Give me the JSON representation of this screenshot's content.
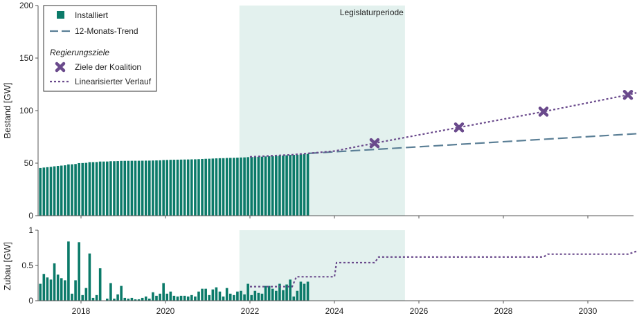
{
  "colors": {
    "bar": "#0b7a69",
    "target": "#6a4a8c",
    "trend": "#5b7f96",
    "shade": "#e3f1ee"
  },
  "chart_data": [
    {
      "type": "bar",
      "title": "",
      "ylabel": "Bestand [GW]",
      "ylim": [
        0,
        200
      ],
      "yticks": [
        0,
        50,
        100,
        150,
        200
      ],
      "xlim": [
        2017.03,
        2031.15
      ],
      "xticks": [
        2018,
        2020,
        2022,
        2024,
        2026,
        2028,
        2030
      ],
      "shade": {
        "label": "Legislaturperiode",
        "from": 2021.75,
        "to": 2025.67
      },
      "bestand_start": 45.2,
      "legend": {
        "placement": "top-left",
        "installed": "Installiert",
        "trend": "12-Monats-Trend",
        "heading": "Regierungsziele",
        "targets": "Ziele der Koalition",
        "linear": "Linearisierter Verlauf"
      },
      "trend": {
        "x": [
          2023.4,
          2031.15
        ],
        "y": [
          59.3,
          78
        ]
      },
      "targets": {
        "x": [
          2024.95,
          2026.95,
          2028.95,
          2030.95
        ],
        "y": [
          69,
          84,
          99,
          115
        ]
      },
      "linear": {
        "x": [
          2022.0,
          2023.0,
          2024.0,
          2024.95,
          2026.95,
          2028.95,
          2030.95,
          2031.15
        ],
        "y": [
          56,
          58,
          61.5,
          69,
          84,
          99,
          115,
          117
        ]
      }
    },
    {
      "type": "bar",
      "ylabel": "Zubau [GW]",
      "ylim": [
        0,
        1
      ],
      "yticks": [
        "0",
        "0.5",
        "1"
      ],
      "x_start": 2017.04,
      "values": [
        0.24,
        0.38,
        0.33,
        0.3,
        0.53,
        0.37,
        0.32,
        0.29,
        0.84,
        0.1,
        0.29,
        0.83,
        0.08,
        0.18,
        0.67,
        0.04,
        0.08,
        0.46,
        0.0,
        0.03,
        0.25,
        0.03,
        0.09,
        0.21,
        0.04,
        0.03,
        0.04,
        0.02,
        0.02,
        0.04,
        0.06,
        0.03,
        0.12,
        0.07,
        0.1,
        0.25,
        0.1,
        0.13,
        0.07,
        0.06,
        0.07,
        0.07,
        0.06,
        0.08,
        0.06,
        0.13,
        0.17,
        0.17,
        0.08,
        0.16,
        0.19,
        0.13,
        0.06,
        0.18,
        0.1,
        0.08,
        0.13,
        0.14,
        0.09,
        0.24,
        0.08,
        0.14,
        0.11,
        0.1,
        0.21,
        0.21,
        0.17,
        0.14,
        0.24,
        0.15,
        0.23,
        0.3,
        0.06,
        0.14,
        0.27,
        0.24,
        0.27
      ],
      "linear_steps": {
        "x": [
          2022.0,
          2023.0,
          2023.1,
          2024.0,
          2024.05,
          2024.95,
          2025.05,
          2028.95,
          2029.05,
          2030.95,
          2031.15
        ],
        "y": [
          0.2,
          0.2,
          0.34,
          0.34,
          0.54,
          0.54,
          0.62,
          0.62,
          0.66,
          0.66,
          0.7
        ]
      }
    }
  ]
}
